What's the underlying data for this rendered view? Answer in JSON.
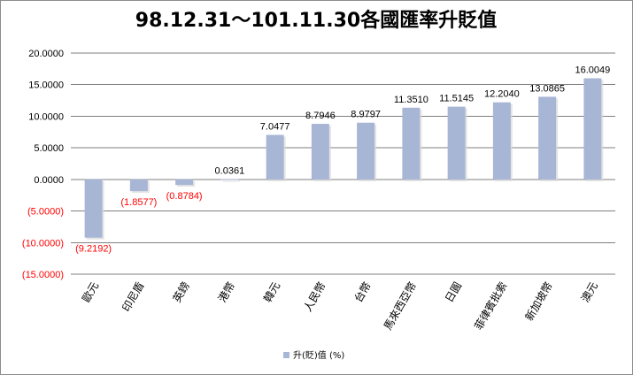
{
  "chart_data": {
    "type": "bar",
    "title": "98.12.31～101.11.30各國匯率升貶值",
    "categories": [
      "歐元",
      "印尼盾",
      "英鎊",
      "港幣",
      "韓元",
      "人民幣",
      "台幣",
      "馬來西亞幣",
      "日圓",
      "菲律賓批索",
      "新加坡幣",
      "澳元"
    ],
    "series": [
      {
        "name": "升(貶)值 (%)",
        "values": [
          -9.2192,
          -1.8577,
          -0.8784,
          0.0361,
          7.0477,
          8.7946,
          8.9797,
          11.351,
          11.5145,
          12.204,
          13.0865,
          16.0049
        ]
      }
    ],
    "data_labels": [
      "(9.2192)",
      "(1.8577)",
      "(0.8784)",
      "0.0361",
      "7.0477",
      "8.7946",
      "8.9797",
      "11.3510",
      "11.5145",
      "12.2040",
      "13.0865",
      "16.0049"
    ],
    "ytick_labels": [
      "20.0000",
      "15.0000",
      "10.0000",
      "5.0000",
      "0.0000",
      "(5.0000)",
      "(10.0000)",
      "(15.0000)"
    ],
    "ytick_values": [
      20,
      15,
      10,
      5,
      0,
      -5,
      -10,
      -15
    ],
    "ylim": [
      -15,
      20
    ],
    "xlabel": "",
    "ylabel": "",
    "grid": true,
    "legend_position": "bottom",
    "colors": {
      "bar": "#a8b6d6",
      "negative_text": "#ff0000",
      "positive_text": "#000000",
      "grid": "#7f7f7f"
    }
  }
}
